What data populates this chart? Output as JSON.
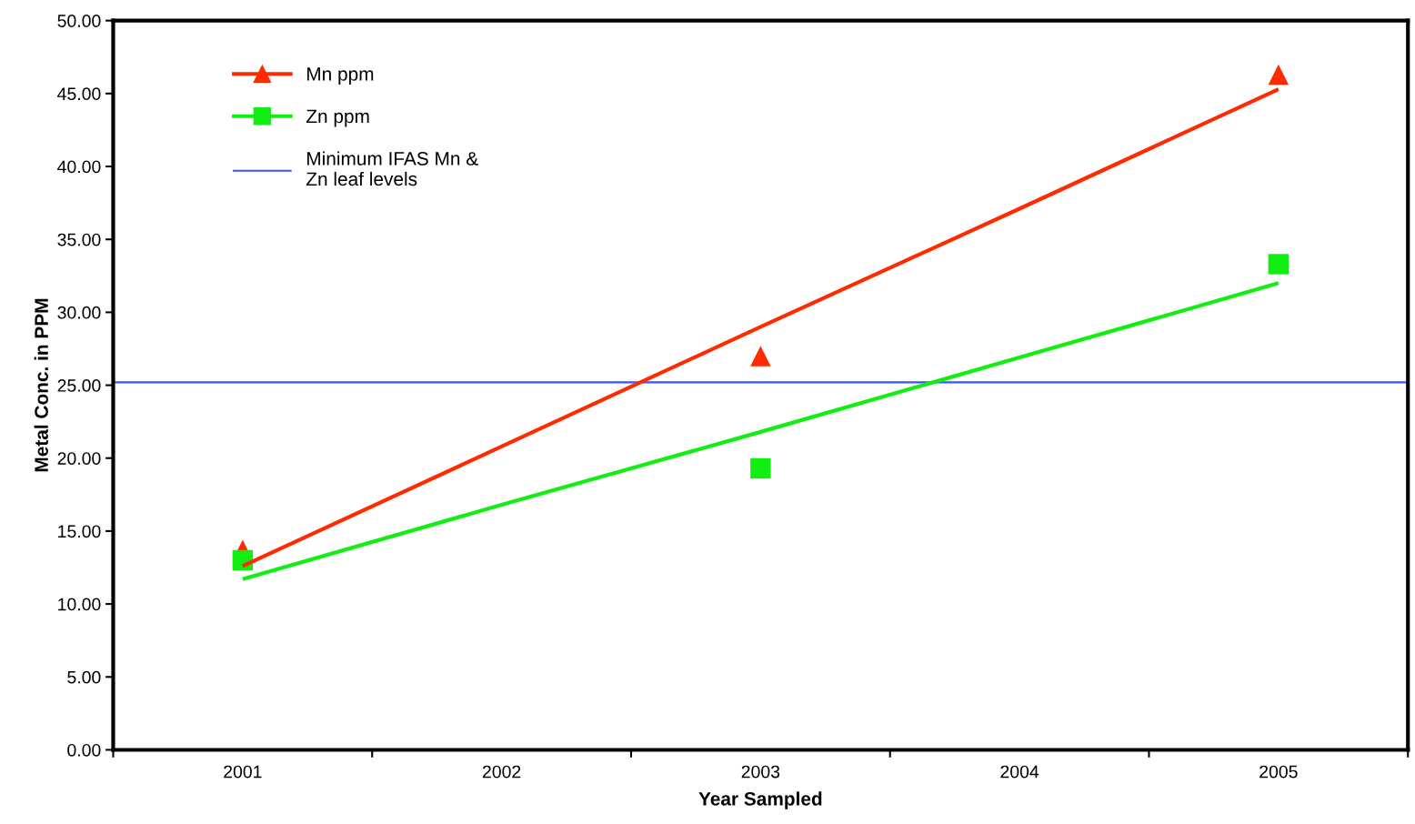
{
  "chart_data": {
    "type": "scatter",
    "xlabel": "Year Sampled",
    "ylabel": "Metal Conc. in PPM",
    "categories": [
      "2001",
      "2002",
      "2003",
      "2004",
      "2005"
    ],
    "series": [
      {
        "name": "Mn ppm",
        "color": "#ff2a00",
        "marker": "triangle",
        "values": [
          13.7,
          null,
          27.0,
          null,
          46.3
        ]
      },
      {
        "name": "Zn ppm",
        "color": "#11ee11",
        "marker": "square",
        "values": [
          13.0,
          null,
          19.3,
          null,
          33.3
        ]
      },
      {
        "type": "line",
        "color": "#ff2a00",
        "values": [
          12.6,
          20.8,
          29.0,
          37.1,
          45.3
        ]
      },
      {
        "type": "line",
        "color": "#11ee11",
        "values": [
          11.7,
          16.8,
          21.8,
          26.9,
          32.0
        ]
      }
    ],
    "ref_lines": [
      {
        "axis": "y",
        "value": 25.2,
        "label": "Minimum IFAS Mn &\nZn leaf levels",
        "color": "#3355ff"
      }
    ],
    "ylim": [
      0,
      50
    ],
    "yticks": [
      {
        "value": 0,
        "label": "0.00"
      },
      {
        "value": 5,
        "label": "5.00"
      },
      {
        "value": 10,
        "label": "10.00"
      },
      {
        "value": 15,
        "label": "15.00"
      },
      {
        "value": 20,
        "label": "20.00"
      },
      {
        "value": 25,
        "label": "25.00"
      },
      {
        "value": 30,
        "label": "30.00"
      },
      {
        "value": 35,
        "label": "35.00"
      },
      {
        "value": 40,
        "label": "40.00"
      },
      {
        "value": 45,
        "label": "45.00"
      },
      {
        "value": 50,
        "label": "50.00"
      }
    ],
    "legend": "top left",
    "grid": false
  }
}
